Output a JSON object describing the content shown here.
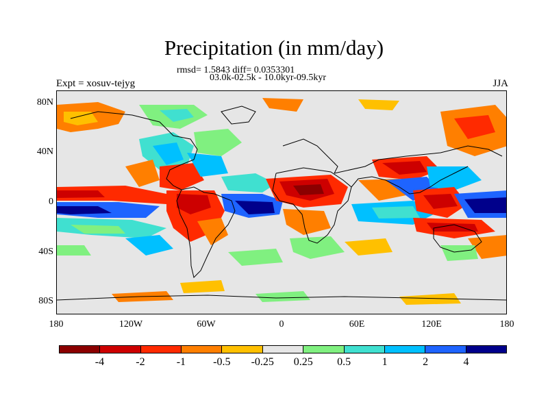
{
  "title": "Precipitation (in mm/day)",
  "subtitle_line1": "rmsd= 1.5843 diff= 0.0353301",
  "subtitle_line2": "03.0k-02.5k - 10.0kyr-09.5kyr",
  "experiment_label": "Expt = xosuv-tejyg",
  "season_label": "JJA",
  "map": {
    "projection": "cylindrical-equidistant",
    "lon_range": [
      -180,
      180
    ],
    "lat_range": [
      -90,
      90
    ],
    "lat_tick_labels": [
      "80N",
      "40N",
      "0",
      "40S",
      "80S"
    ],
    "lon_tick_labels": [
      "180",
      "120W",
      "60W",
      "0",
      "60E",
      "120E",
      "180"
    ],
    "background_color": "#e6e6e6",
    "coastline_color": "#000000"
  },
  "colorbar": {
    "colors": [
      "#8b0000",
      "#cd0000",
      "#ff2a00",
      "#ff7f00",
      "#ffc000",
      "#e6e6e6",
      "#80f080",
      "#40e0d0",
      "#00c0ff",
      "#1e64ff",
      "#00008b"
    ],
    "tick_labels": [
      "-4",
      "-2",
      "-1",
      "-0.5",
      "-0.25",
      "0.25",
      "0.5",
      "1",
      "2",
      "4"
    ]
  }
}
